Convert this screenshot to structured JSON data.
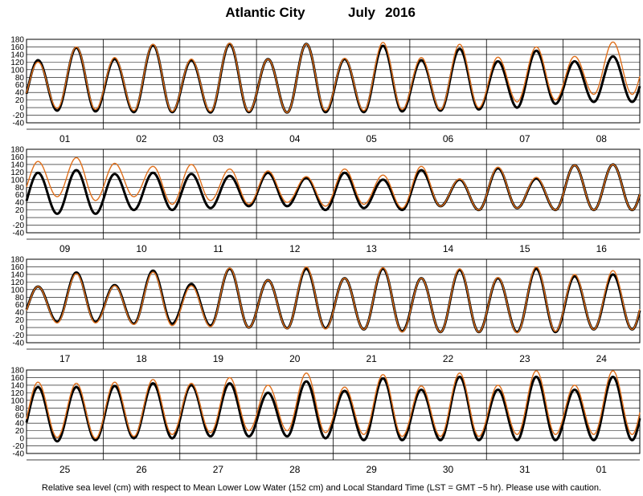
{
  "chart_data": {
    "type": "line",
    "title": "Atlantic City",
    "month": "July",
    "year": "2016",
    "ylim": [
      -40,
      180
    ],
    "yticks": [
      -40,
      -20,
      0,
      20,
      40,
      60,
      80,
      100,
      120,
      140,
      160,
      180
    ],
    "grid": true,
    "series_colors": {
      "predicted": "#000000",
      "observed": "#e0701c"
    },
    "footnote": "Relative sea level (cm) with respect to Mean Lower Low Water (152 cm) and Local Standard Time (LST = GMT −5 hr). Please use with caution.",
    "panels": [
      {
        "days": [
          "01",
          "02",
          "03",
          "04",
          "05",
          "06",
          "07",
          "08"
        ],
        "predicted": [
          [
            -10,
            125
          ],
          [
            -8,
            158
          ],
          [
            -10,
            128
          ],
          [
            -12,
            165
          ],
          [
            -12,
            125
          ],
          [
            -13,
            168
          ],
          [
            -12,
            128
          ],
          [
            -13,
            168
          ],
          [
            -12,
            128
          ],
          [
            -12,
            163
          ],
          [
            -10,
            125
          ],
          [
            -8,
            155
          ],
          [
            -5,
            122
          ],
          [
            0,
            150
          ],
          [
            10,
            122
          ],
          [
            15,
            135
          ]
        ],
        "observed": [
          [
            -5,
            120
          ],
          [
            -2,
            160
          ],
          [
            -5,
            132
          ],
          [
            -8,
            167
          ],
          [
            -10,
            128
          ],
          [
            -10,
            170
          ],
          [
            -10,
            128
          ],
          [
            -13,
            168
          ],
          [
            -8,
            130
          ],
          [
            -8,
            172
          ],
          [
            -5,
            132
          ],
          [
            -5,
            167
          ],
          [
            0,
            133
          ],
          [
            15,
            160
          ],
          [
            20,
            135
          ],
          [
            35,
            173
          ]
        ]
      },
      {
        "days": [
          "09",
          "10",
          "11",
          "12",
          "13",
          "14",
          "15",
          "16"
        ],
        "predicted": [
          [
            5,
            118
          ],
          [
            10,
            125
          ],
          [
            10,
            115
          ],
          [
            20,
            118
          ],
          [
            20,
            115
          ],
          [
            25,
            110
          ],
          [
            30,
            118
          ],
          [
            30,
            105
          ],
          [
            20,
            118
          ],
          [
            25,
            100
          ],
          [
            20,
            125
          ],
          [
            30,
            100
          ],
          [
            20,
            130
          ],
          [
            25,
            103
          ],
          [
            20,
            138
          ],
          [
            20,
            140
          ]
        ],
        "observed": [
          [
            45,
            148
          ],
          [
            55,
            158
          ],
          [
            45,
            143
          ],
          [
            55,
            135
          ],
          [
            35,
            140
          ],
          [
            45,
            128
          ],
          [
            35,
            123
          ],
          [
            40,
            108
          ],
          [
            30,
            128
          ],
          [
            35,
            112
          ],
          [
            25,
            135
          ],
          [
            30,
            102
          ],
          [
            20,
            133
          ],
          [
            25,
            106
          ],
          [
            20,
            138
          ],
          [
            20,
            140
          ]
        ]
      },
      {
        "days": [
          "17",
          "18",
          "19",
          "20",
          "21",
          "22",
          "23",
          "24"
        ],
        "predicted": [
          [
            15,
            108
          ],
          [
            15,
            145
          ],
          [
            15,
            112
          ],
          [
            10,
            150
          ],
          [
            10,
            115
          ],
          [
            5,
            155
          ],
          [
            0,
            125
          ],
          [
            -2,
            155
          ],
          [
            -2,
            130
          ],
          [
            -5,
            155
          ],
          [
            -10,
            130
          ],
          [
            -12,
            152
          ],
          [
            -12,
            130
          ],
          [
            -12,
            155
          ],
          [
            -12,
            135
          ],
          [
            -5,
            140
          ]
        ],
        "observed": [
          [
            12,
            108
          ],
          [
            12,
            142
          ],
          [
            12,
            110
          ],
          [
            8,
            146
          ],
          [
            5,
            110
          ],
          [
            2,
            157
          ],
          [
            0,
            125
          ],
          [
            -3,
            160
          ],
          [
            -4,
            130
          ],
          [
            -5,
            158
          ],
          [
            -12,
            130
          ],
          [
            -12,
            155
          ],
          [
            -12,
            132
          ],
          [
            -14,
            160
          ],
          [
            -10,
            140
          ],
          [
            -5,
            150
          ]
        ]
      },
      {
        "days": [
          "25",
          "26",
          "27",
          "28",
          "29",
          "30",
          "31",
          "01"
        ],
        "predicted": [
          [
            -8,
            135
          ],
          [
            -8,
            135
          ],
          [
            -5,
            138
          ],
          [
            0,
            145
          ],
          [
            0,
            140
          ],
          [
            5,
            145
          ],
          [
            5,
            120
          ],
          [
            5,
            150
          ],
          [
            0,
            125
          ],
          [
            -5,
            158
          ],
          [
            -5,
            128
          ],
          [
            -5,
            162
          ],
          [
            -5,
            128
          ],
          [
            -5,
            162
          ],
          [
            -5,
            128
          ],
          [
            -5,
            162
          ]
        ],
        "observed": [
          [
            0,
            148
          ],
          [
            2,
            145
          ],
          [
            0,
            148
          ],
          [
            5,
            155
          ],
          [
            10,
            145
          ],
          [
            15,
            160
          ],
          [
            20,
            140
          ],
          [
            20,
            172
          ],
          [
            15,
            135
          ],
          [
            10,
            168
          ],
          [
            5,
            138
          ],
          [
            5,
            172
          ],
          [
            5,
            140
          ],
          [
            10,
            178
          ],
          [
            10,
            140
          ],
          [
            10,
            178
          ]
        ]
      }
    ]
  }
}
